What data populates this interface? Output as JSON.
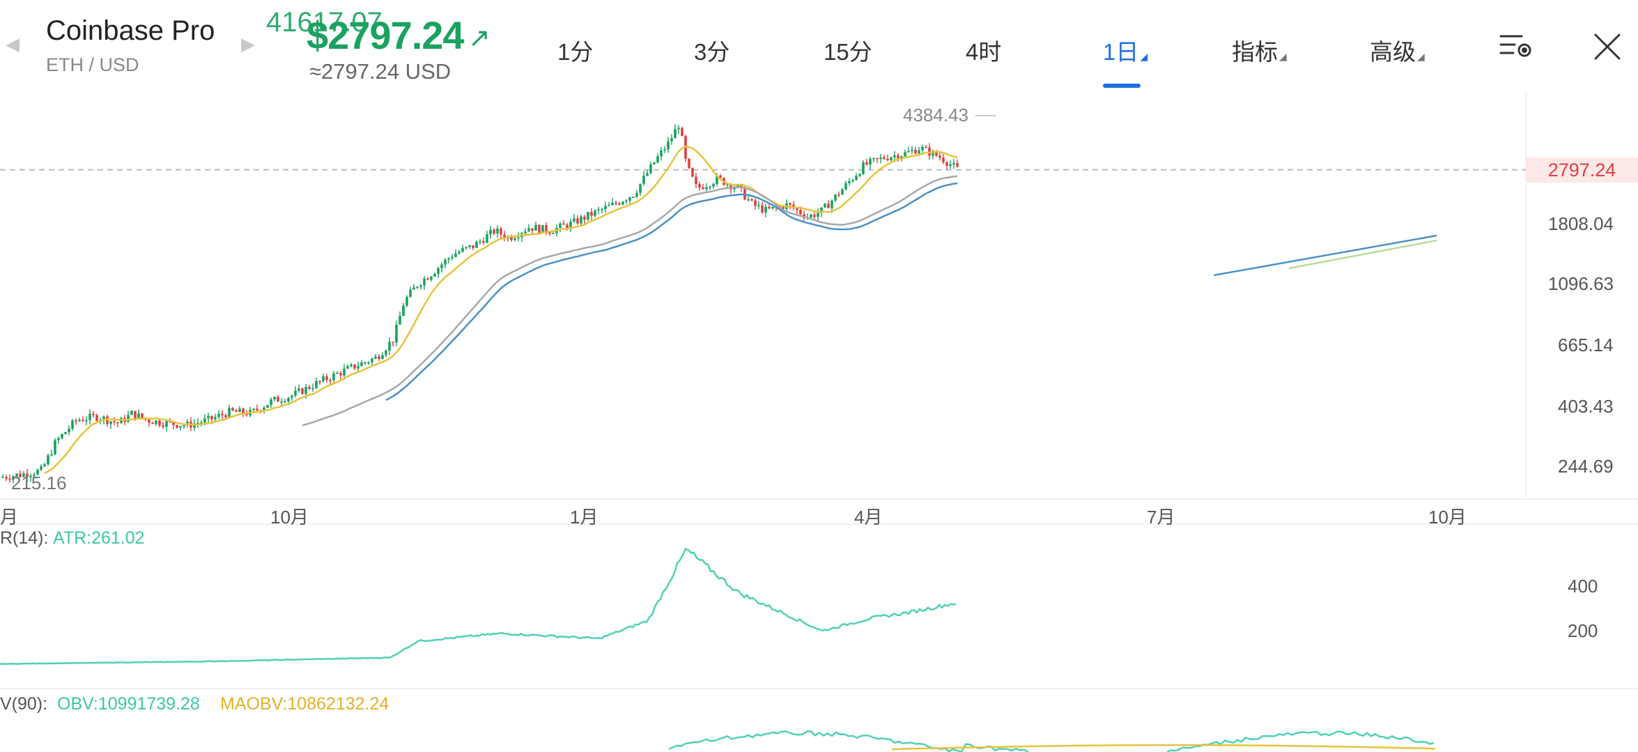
{
  "header": {
    "exchange": "Coinbase Pro",
    "pair": "ETH / USD",
    "price_ghost": "41617.07",
    "price": "$2797.24",
    "price_usd": "≈2797.24 USD",
    "prev_arrow": "◀",
    "next_arrow": "▶",
    "trend_arrow": "↗"
  },
  "tabs": [
    {
      "label": "1分",
      "active": false
    },
    {
      "label": "3分",
      "active": false
    },
    {
      "label": "15分",
      "active": false
    },
    {
      "label": "4时",
      "active": false
    },
    {
      "label": "1日",
      "active": true,
      "has_menu": true
    },
    {
      "label": "指标",
      "active": false,
      "has_menu": true
    },
    {
      "label": "高级",
      "active": false,
      "has_menu": true
    }
  ],
  "icons": {
    "settings": "chart-settings-icon",
    "close": "close-icon"
  },
  "colors": {
    "up": "#1aa260",
    "down": "#e04040",
    "accent": "#1e6fe0",
    "ma_yellow": "#e8c33a",
    "ma_gray": "#a8a8a8",
    "ma_blue": "#4a90c8",
    "atr": "#4fd1b5"
  },
  "main_chart": {
    "high_label": "4384.43",
    "low_label": "215.16",
    "last_price": "2797.24",
    "y_ticks": [
      "1808.04",
      "1096.63",
      "665.14",
      "403.43",
      "244.69"
    ],
    "x_ticks": [
      "月",
      "10月",
      "1月",
      "4月",
      "7月",
      "10月"
    ]
  },
  "atr_panel": {
    "title_prefix": "R(14):",
    "title_value": "ATR:261.02",
    "y_ticks": [
      "400",
      "200"
    ]
  },
  "obv_panel": {
    "title_prefix": "V(90):",
    "obv": "OBV:10991739.28",
    "maobv": "MAOBV:10862132.24"
  },
  "chart_data": {
    "type": "candlestick",
    "title": "",
    "xlabel": "",
    "ylabel": "",
    "y_scale": "log",
    "x_ticks": [
      "10月",
      "1月",
      "4月",
      "7月",
      "10月"
    ],
    "y_ticks": [
      1808.04,
      1096.63,
      665.14,
      403.43,
      244.69
    ],
    "high": 4384.43,
    "low": 215.16,
    "last": 2797.24,
    "series_close_approx": [
      [
        0,
        225
      ],
      [
        30,
        230
      ],
      [
        60,
        238
      ],
      [
        80,
        300
      ],
      [
        110,
        360
      ],
      [
        140,
        370
      ],
      [
        170,
        350
      ],
      [
        190,
        380
      ],
      [
        210,
        360
      ],
      [
        240,
        350
      ],
      [
        270,
        345
      ],
      [
        300,
        360
      ],
      [
        330,
        385
      ],
      [
        360,
        380
      ],
      [
        390,
        420
      ],
      [
        420,
        440
      ],
      [
        450,
        480
      ],
      [
        480,
        520
      ],
      [
        510,
        560
      ],
      [
        540,
        600
      ],
      [
        565,
        700
      ],
      [
        580,
        950
      ],
      [
        600,
        1100
      ],
      [
        620,
        1200
      ],
      [
        650,
        1400
      ],
      [
        680,
        1500
      ],
      [
        710,
        1700
      ],
      [
        730,
        1600
      ],
      [
        760,
        1750
      ],
      [
        790,
        1700
      ],
      [
        820,
        1800
      ],
      [
        850,
        1950
      ],
      [
        880,
        2100
      ],
      [
        910,
        2300
      ],
      [
        940,
        3000
      ],
      [
        960,
        3500
      ],
      [
        975,
        4100
      ],
      [
        985,
        2900
      ],
      [
        1000,
        2400
      ],
      [
        1030,
        2600
      ],
      [
        1060,
        2400
      ],
      [
        1080,
        2100
      ],
      [
        1100,
        2000
      ],
      [
        1130,
        2100
      ],
      [
        1160,
        1900
      ],
      [
        1180,
        2000
      ],
      [
        1210,
        2400
      ],
      [
        1240,
        2900
      ],
      [
        1270,
        3100
      ],
      [
        1300,
        3200
      ],
      [
        1320,
        3350
      ],
      [
        1350,
        3100
      ],
      [
        1375,
        2797.24
      ]
    ],
    "atr_approx": [
      [
        0,
        20
      ],
      [
        300,
        30
      ],
      [
        560,
        45
      ],
      [
        600,
        110
      ],
      [
        720,
        140
      ],
      [
        860,
        120
      ],
      [
        930,
        190
      ],
      [
        985,
        470
      ],
      [
        1060,
        300
      ],
      [
        1180,
        150
      ],
      [
        1250,
        200
      ],
      [
        1300,
        220
      ],
      [
        1375,
        261.02
      ]
    ]
  }
}
